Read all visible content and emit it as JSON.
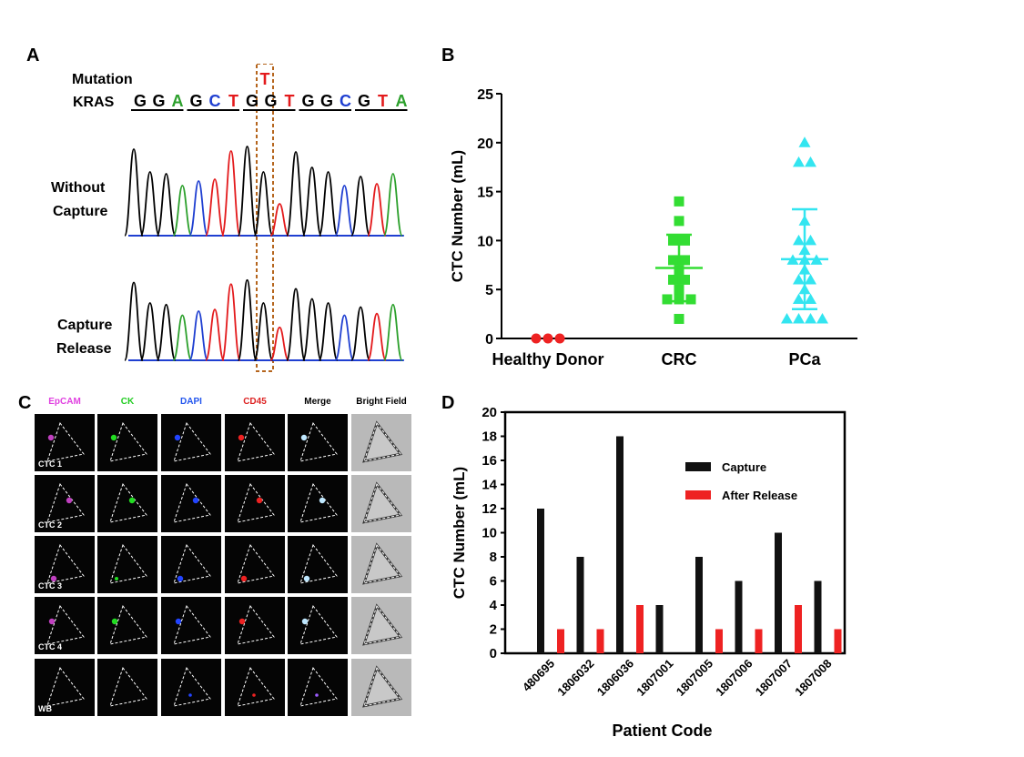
{
  "panels": {
    "a": {
      "letter": "A",
      "mutation_label": "Mutation",
      "gene_label": "KRAS",
      "mutant_base": "T",
      "sequence": [
        {
          "base": "G",
          "color": "#000000"
        },
        {
          "base": "G",
          "color": "#000000"
        },
        {
          "base": "A",
          "color": "#2ca02c"
        },
        {
          "base": "G",
          "color": "#000000"
        },
        {
          "base": "C",
          "color": "#1f3fd1"
        },
        {
          "base": "T",
          "color": "#e31a1c"
        },
        {
          "base": "G",
          "color": "#000000"
        },
        {
          "base": "G",
          "color": "#000000"
        },
        {
          "base": "T",
          "color": "#e31a1c"
        },
        {
          "base": "G",
          "color": "#000000"
        },
        {
          "base": "G",
          "color": "#000000"
        },
        {
          "base": "C",
          "color": "#1f3fd1"
        },
        {
          "base": "G",
          "color": "#000000"
        },
        {
          "base": "T",
          "color": "#e31a1c"
        },
        {
          "base": "A",
          "color": "#2ca02c"
        }
      ],
      "trace1_label_1": "Without",
      "trace1_label_2": "Capture",
      "trace2_label_1": "Capture",
      "trace2_label_2": "Release"
    },
    "b": {
      "letter": "B"
    },
    "c": {
      "letter": "C",
      "columns": [
        {
          "label": "EpCAM",
          "color": "#e040e0"
        },
        {
          "label": "CK",
          "color": "#22cc22"
        },
        {
          "label": "DAPI",
          "color": "#2255ee"
        },
        {
          "label": "CD45",
          "color": "#dd2222"
        },
        {
          "label": "Merge",
          "color": "#000000"
        },
        {
          "label": "Bright Field",
          "color": "#000000"
        }
      ],
      "rows": [
        "CTC 1",
        "CTC 2",
        "CTC 3",
        "CTC 4",
        "WB"
      ]
    },
    "d": {
      "letter": "D"
    }
  },
  "chart_data": [
    {
      "id": "B",
      "type": "scatter",
      "title": "",
      "xlabel": "",
      "ylabel": "CTC Number (mL)",
      "ylim": [
        0,
        25
      ],
      "yticks": [
        0,
        5,
        10,
        15,
        20,
        25
      ],
      "categories": [
        "Healthy Donor",
        "CRC",
        "PCa"
      ],
      "series": [
        {
          "name": "Healthy Donor",
          "marker": "circle",
          "color": "#ee2222",
          "values": [
            0,
            0,
            0
          ],
          "mean": 0,
          "sd": 0
        },
        {
          "name": "CRC",
          "marker": "square",
          "color": "#33dd33",
          "values": [
            2,
            4,
            4,
            4,
            5,
            6,
            6,
            7,
            8,
            8,
            10,
            10,
            12,
            14
          ],
          "mean": 7.2,
          "sd": 3.4
        },
        {
          "name": "PCa",
          "marker": "triangle",
          "color": "#33e5f0",
          "values": [
            2,
            2,
            2,
            2,
            4,
            4,
            5,
            6,
            6,
            7,
            8,
            8,
            8,
            9,
            10,
            10,
            12,
            18,
            18,
            20
          ],
          "mean": 8.1,
          "sd": 5.1
        }
      ]
    },
    {
      "id": "D",
      "type": "bar",
      "title": "",
      "xlabel": "Patient Code",
      "ylabel": "CTC Number (mL)",
      "ylim": [
        0,
        20
      ],
      "yticks": [
        0,
        2,
        4,
        6,
        8,
        10,
        12,
        14,
        16,
        18,
        20
      ],
      "categories": [
        "480695",
        "1806032",
        "1806036",
        "1807001",
        "1807005",
        "1807006",
        "1807007",
        "1807008"
      ],
      "legend_position": "top-right",
      "series": [
        {
          "name": "Capture",
          "color": "#111111",
          "values": [
            12,
            8,
            18,
            4,
            8,
            6,
            10,
            6
          ]
        },
        {
          "name": "After Release",
          "color": "#ee2222",
          "values": [
            2,
            2,
            4,
            0,
            2,
            2,
            4,
            2
          ]
        }
      ]
    }
  ]
}
